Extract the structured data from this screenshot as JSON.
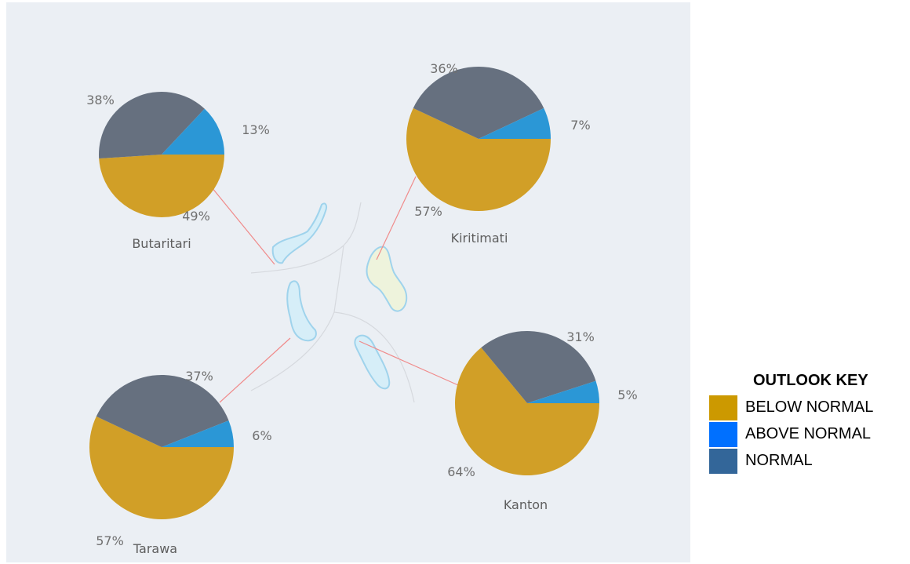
{
  "colors": {
    "below_normal": "#D19F27",
    "above_normal": "#2B97D6",
    "normal": "#66707F",
    "map_background": "#EBEFF4",
    "island_fill": "#D6EEF8",
    "island_stroke": "#9FD3EC",
    "leader_line": "#F08A8A"
  },
  "chart_data": {
    "type": "pie",
    "categories": [
      "BELOW NORMAL",
      "ABOVE NORMAL",
      "NORMAL"
    ],
    "stations": [
      {
        "name": "Butaritari",
        "values": [
          49,
          13,
          38
        ],
        "labels": [
          "49%",
          "13%",
          "38%"
        ]
      },
      {
        "name": "Kiritimati",
        "values": [
          57,
          7,
          36
        ],
        "labels": [
          "57%",
          "7%",
          "36%"
        ]
      },
      {
        "name": "Tarawa",
        "values": [
          57,
          6,
          37
        ],
        "labels": [
          "57%",
          "6%",
          "37%"
        ]
      },
      {
        "name": "Kanton",
        "values": [
          64,
          5,
          31
        ],
        "labels": [
          "64%",
          "5%",
          "31%"
        ]
      }
    ]
  },
  "legend": {
    "title": "OUTLOOK KEY",
    "items": [
      {
        "label": "BELOW NORMAL",
        "color": "#CC9900"
      },
      {
        "label": "ABOVE NORMAL",
        "color": "#0070FF"
      },
      {
        "label": "NORMAL",
        "color": "#336699"
      }
    ]
  }
}
